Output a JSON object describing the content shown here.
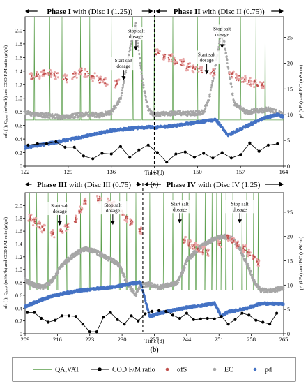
{
  "chart_data": [
    {
      "type": "line",
      "panel": "(a)",
      "phases": [
        {
          "label": "Phase I",
          "suffix": " with (Disc I (1.25))"
        },
        {
          "label": "Phase II",
          "suffix": " with (Disc II (0.75))"
        }
      ],
      "divider_x": 143,
      "xlim": [
        122,
        164
      ],
      "xticks": [
        122,
        129,
        136,
        143,
        150,
        157,
        164
      ],
      "xlabel": "Time (d)",
      "ylim_left": [
        0,
        2.2
      ],
      "yticks_left": [
        0,
        0.2,
        0.4,
        0.6,
        0.8,
        1.0,
        1.2,
        1.4,
        1.6,
        1.8,
        2.0
      ],
      "ylim_right": [
        0,
        29
      ],
      "yticks_right": [
        0,
        5,
        10,
        15,
        20,
        25
      ],
      "ylabel_left": "αfₛ (-); Qₐ,ᵥₐₜ (m³/m²h) and COD F/M ratio (g/g/d)",
      "ylabel_right": "pᵈ (kPa) and EC (mS/cm)",
      "annotations": [
        {
          "text": [
            "Stop salt",
            "dosage"
          ],
          "x": 140.0,
          "y": 1.96
        },
        {
          "text": [
            "Start salt",
            "dosage"
          ],
          "x": 138.0,
          "y": 1.52
        },
        {
          "text": [
            "Start salt",
            "dosage"
          ],
          "x": 151.5,
          "y": 1.61
        },
        {
          "text": [
            "Stop salt",
            "dosage"
          ],
          "x": 154.0,
          "y": 1.99
        }
      ],
      "series": {
        "QA_VAT_base": 0.68,
        "QA_VAT_spikes": [
          123.5,
          126,
          128,
          131,
          132.5,
          136,
          139.5,
          141,
          143,
          146,
          150,
          153.5,
          157,
          159.5,
          161
        ],
        "COD_FM": {
          "x": [
            122.5,
            124,
            125.5,
            127,
            128.5,
            130,
            131.5,
            133,
            134.5,
            136,
            137.5,
            139,
            140.5,
            142,
            143.5,
            145,
            146.5,
            148,
            149.5,
            151,
            152.5,
            154,
            155.5,
            157,
            158.5,
            160,
            161.5,
            163
          ],
          "y": [
            0.31,
            0.33,
            0.33,
            0.36,
            0.28,
            0.28,
            0.15,
            0.11,
            0.19,
            0.18,
            0.29,
            0.13,
            0.24,
            0.31,
            0.2,
            0.06,
            0.18,
            0.21,
            0.13,
            0.19,
            0.12,
            0.2,
            0.12,
            0.17,
            0.34,
            0.22,
            0.31,
            0.33
          ]
        },
        "alpha_fS": {
          "x": [
            123,
            124,
            125,
            126,
            127,
            128.5,
            130,
            131,
            132,
            133,
            134,
            135,
            137,
            143.5,
            144.5,
            145.5,
            146.5,
            147.5,
            148.5,
            149.5,
            150.5,
            152.5,
            155.5,
            156.5,
            157.5,
            158.5,
            159.5,
            160.5
          ],
          "y": [
            1.32,
            1.35,
            1.38,
            1.36,
            1.33,
            1.29,
            1.34,
            1.4,
            1.37,
            1.31,
            1.27,
            1.24,
            1.22,
            1.68,
            1.63,
            1.6,
            1.55,
            1.52,
            1.47,
            1.43,
            1.41,
            1.38,
            1.35,
            1.3,
            1.27,
            1.24,
            1.22,
            1.2
          ]
        },
        "EC": {
          "x": [
            122,
            124,
            126,
            128,
            130,
            132,
            134,
            136,
            137.5,
            139,
            140,
            141,
            142,
            143,
            145,
            147,
            149,
            151,
            152,
            153,
            154,
            155,
            156,
            158,
            160,
            161.5,
            163,
            164
          ],
          "y": [
            10.4,
            10.0,
            9.8,
            9.5,
            9.8,
            10.1,
            9.9,
            10.5,
            13.0,
            22.5,
            27.5,
            17.0,
            11.0,
            10.0,
            10.2,
            10.3,
            10.2,
            10.5,
            13.5,
            20.0,
            27.0,
            19.0,
            12.0,
            10.5,
            10.8,
            11.0,
            10.5,
            9.8
          ]
        },
        "pd": {
          "x": [
            122,
            125,
            128,
            131,
            134,
            136,
            139,
            142,
            143,
            146,
            150,
            153,
            155,
            158,
            161,
            163,
            164
          ],
          "y": [
            3.6,
            4.2,
            4.9,
            5.6,
            6.4,
            6.9,
            7.3,
            7.6,
            7.5,
            7.8,
            8.5,
            9.0,
            6.0,
            7.8,
            9.4,
            10.0,
            9.6
          ]
        }
      }
    },
    {
      "type": "line",
      "panel": "(b)",
      "phases": [
        {
          "label": "Phase III",
          "suffix": " with (Disc III (0.75)"
        },
        {
          "label": "Phase IV",
          "suffix": " with (Disc IV (1.25)"
        }
      ],
      "divider_x": 234.5,
      "xlim": [
        209,
        265
      ],
      "xticks": [
        209,
        216,
        223,
        230,
        237,
        244,
        251,
        258,
        265
      ],
      "xlabel": "Time (d)",
      "ylim_left": [
        0,
        2.2
      ],
      "yticks_left": [
        0,
        0.2,
        0.4,
        0.6,
        0.8,
        1.0,
        1.2,
        1.4,
        1.6,
        1.8,
        2.0
      ],
      "ylim_right": [
        0,
        29
      ],
      "yticks_right": [
        0,
        5,
        10,
        15,
        20,
        25
      ],
      "ylabel_left": "αfₛ (-); Qₐ,ᵥₐₜ (m³/m²h) and COD F/M ratio (g/g/d)",
      "ylabel_right": "pᵈ (kPa) and EC (mS/cm)",
      "annotations": [
        {
          "text": [
            "Start salt",
            "dosage"
          ],
          "x": 216.5,
          "y": 1.96
        },
        {
          "text": [
            "Stop salt",
            "dosage"
          ],
          "x": 228.0,
          "y": 1.97
        },
        {
          "text": [
            "Start salt",
            "dosage"
          ],
          "x": 242.5,
          "y": 1.99
        },
        {
          "text": [
            "Stop salt",
            "dosage"
          ],
          "x": 255.5,
          "y": 1.99
        }
      ],
      "series": {
        "QA_VAT_base": 0.68,
        "QA_VAT_spikes": [
          210,
          211.5,
          214,
          216,
          218,
          221,
          223,
          225.5,
          227.5,
          229.5,
          231,
          233,
          236,
          239,
          241,
          243,
          244.5,
          246,
          248,
          249.5,
          250.5,
          251.5,
          252.5,
          254,
          256,
          257,
          258.5,
          259.5
        ],
        "COD_FM": {
          "x": [
            209.5,
            211,
            212.5,
            214,
            215.5,
            217,
            218.5,
            220,
            221.5,
            223,
            224.5,
            226,
            227.5,
            229,
            230.5,
            232,
            233.5,
            235,
            236.5,
            238,
            239.5,
            241,
            242.5,
            244,
            245.5,
            247,
            248.5,
            250,
            251.5,
            253,
            254.5,
            256,
            257.5,
            259,
            260.5,
            262,
            263.5
          ],
          "y": [
            0.33,
            0.33,
            0.24,
            0.18,
            0.21,
            0.28,
            0.28,
            0.27,
            0.15,
            0.03,
            0.03,
            0.26,
            0.33,
            0.22,
            0.15,
            0.28,
            0.2,
            0.31,
            0.35,
            0.36,
            0.35,
            0.29,
            0.24,
            0.32,
            0.22,
            0.23,
            0.24,
            0.23,
            0.27,
            0.15,
            0.22,
            0.32,
            0.29,
            0.21,
            0.18,
            0.15,
            0.32
          ]
        },
        "alpha_fS": {
          "x": [
            210,
            211,
            212,
            213,
            215,
            217,
            218,
            220,
            221,
            222,
            225,
            227,
            228,
            230,
            231,
            232,
            234,
            243.5,
            244.5,
            245.5,
            246.5,
            247.5,
            248.5,
            251,
            253,
            254,
            255,
            256.5,
            257.5,
            258.5,
            259.5
          ],
          "y": [
            1.82,
            1.75,
            1.7,
            1.64,
            1.56,
            1.62,
            1.66,
            1.78,
            1.93,
            2.05,
            2.1,
            2.05,
            2.0,
            1.88,
            1.8,
            1.74,
            1.6,
            1.45,
            1.4,
            1.36,
            1.33,
            1.3,
            1.26,
            1.4,
            1.5,
            1.46,
            1.4,
            1.33,
            1.26,
            1.2,
            1.12
          ]
        },
        "EC": {
          "x": [
            209,
            211,
            213,
            215,
            216.5,
            218,
            220,
            222,
            224,
            226,
            228,
            229.5,
            231,
            233,
            234,
            236,
            238,
            240,
            242,
            243,
            244,
            246,
            248,
            250,
            252,
            254,
            255.5,
            257,
            258.5,
            260,
            262,
            264
          ],
          "y": [
            11.0,
            10.0,
            9.5,
            11.0,
            13.5,
            15.0,
            16.5,
            17.5,
            17.0,
            16.0,
            15.0,
            14.0,
            10.5,
            8.0,
            10.0,
            10.2,
            9.5,
            10.0,
            10.5,
            12.5,
            15.0,
            17.0,
            18.5,
            19.5,
            20.0,
            19.5,
            17.5,
            14.5,
            11.0,
            9.0,
            8.8,
            9.2
          ]
        },
        "pd": {
          "x": [
            209,
            212,
            215,
            218,
            221,
            224,
            227,
            230,
            232,
            234,
            236,
            238,
            241,
            244,
            247,
            250,
            251.5,
            253,
            256,
            258,
            260,
            263
          ],
          "y": [
            5.6,
            6.8,
            7.8,
            8.4,
            8.9,
            9.2,
            9.5,
            9.9,
            10.3,
            10.6,
            3.5,
            4.2,
            4.8,
            5.4,
            5.8,
            6.3,
            3.6,
            4.5,
            5.0,
            5.5,
            6.2,
            6.2
          ]
        }
      }
    }
  ],
  "legend": [
    {
      "label": "QA,VAT",
      "kind": "line",
      "color": "#5a9e4a"
    },
    {
      "label": "COD F/M ratio",
      "kind": "line-marker",
      "color": "#000000"
    },
    {
      "label": "αfS",
      "kind": "marker",
      "color": "#c0504d"
    },
    {
      "label": "EC",
      "kind": "marker",
      "color": "#a6a6a6"
    },
    {
      "label": "pd",
      "kind": "marker",
      "color": "#4472c4"
    }
  ],
  "colors": {
    "qa": "#5a9e4a",
    "cod": "#000000",
    "alpha": "#c0504d",
    "alpha_halo": "#e8a7a7",
    "ec": "#a6a6a6",
    "pd": "#4472c4"
  }
}
